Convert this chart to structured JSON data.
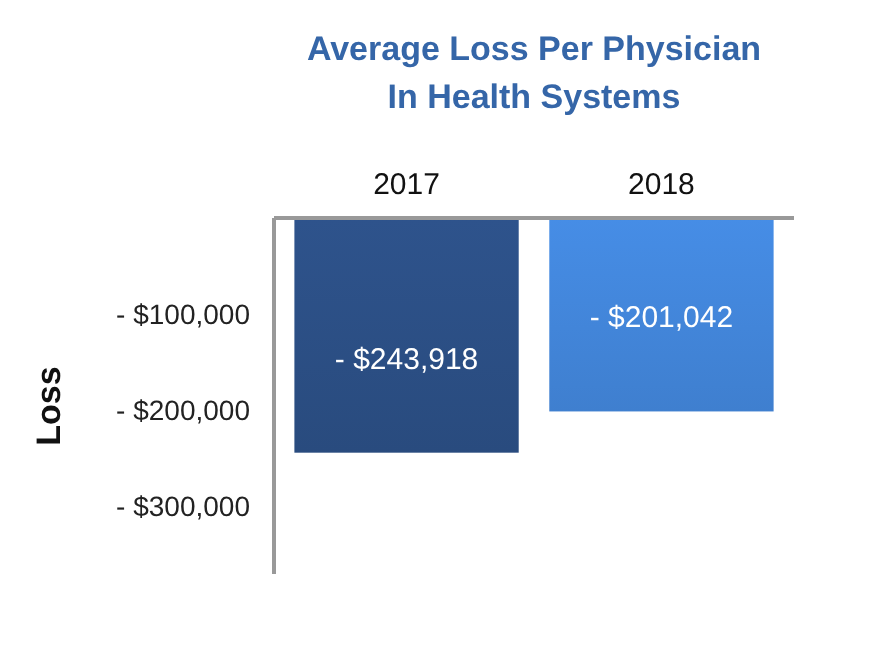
{
  "chart_data": {
    "type": "bar",
    "title": "Average Loss Per Physician In Health Systems",
    "ylabel": "Loss",
    "categories": [
      "2017",
      "2018"
    ],
    "values": [
      -243918,
      -201042
    ],
    "colors": [
      "#294b7e",
      "#3f7fcf"
    ],
    "value_labels": [
      "- $243,918",
      "- $201,042"
    ],
    "ylim": [
      -370000,
      0
    ],
    "yticks": [
      {
        "value": -100000,
        "label": "- $100,000"
      },
      {
        "value": -200000,
        "label": "- $200,000"
      },
      {
        "value": -300000,
        "label": "- $300,000"
      }
    ],
    "grid": false
  }
}
